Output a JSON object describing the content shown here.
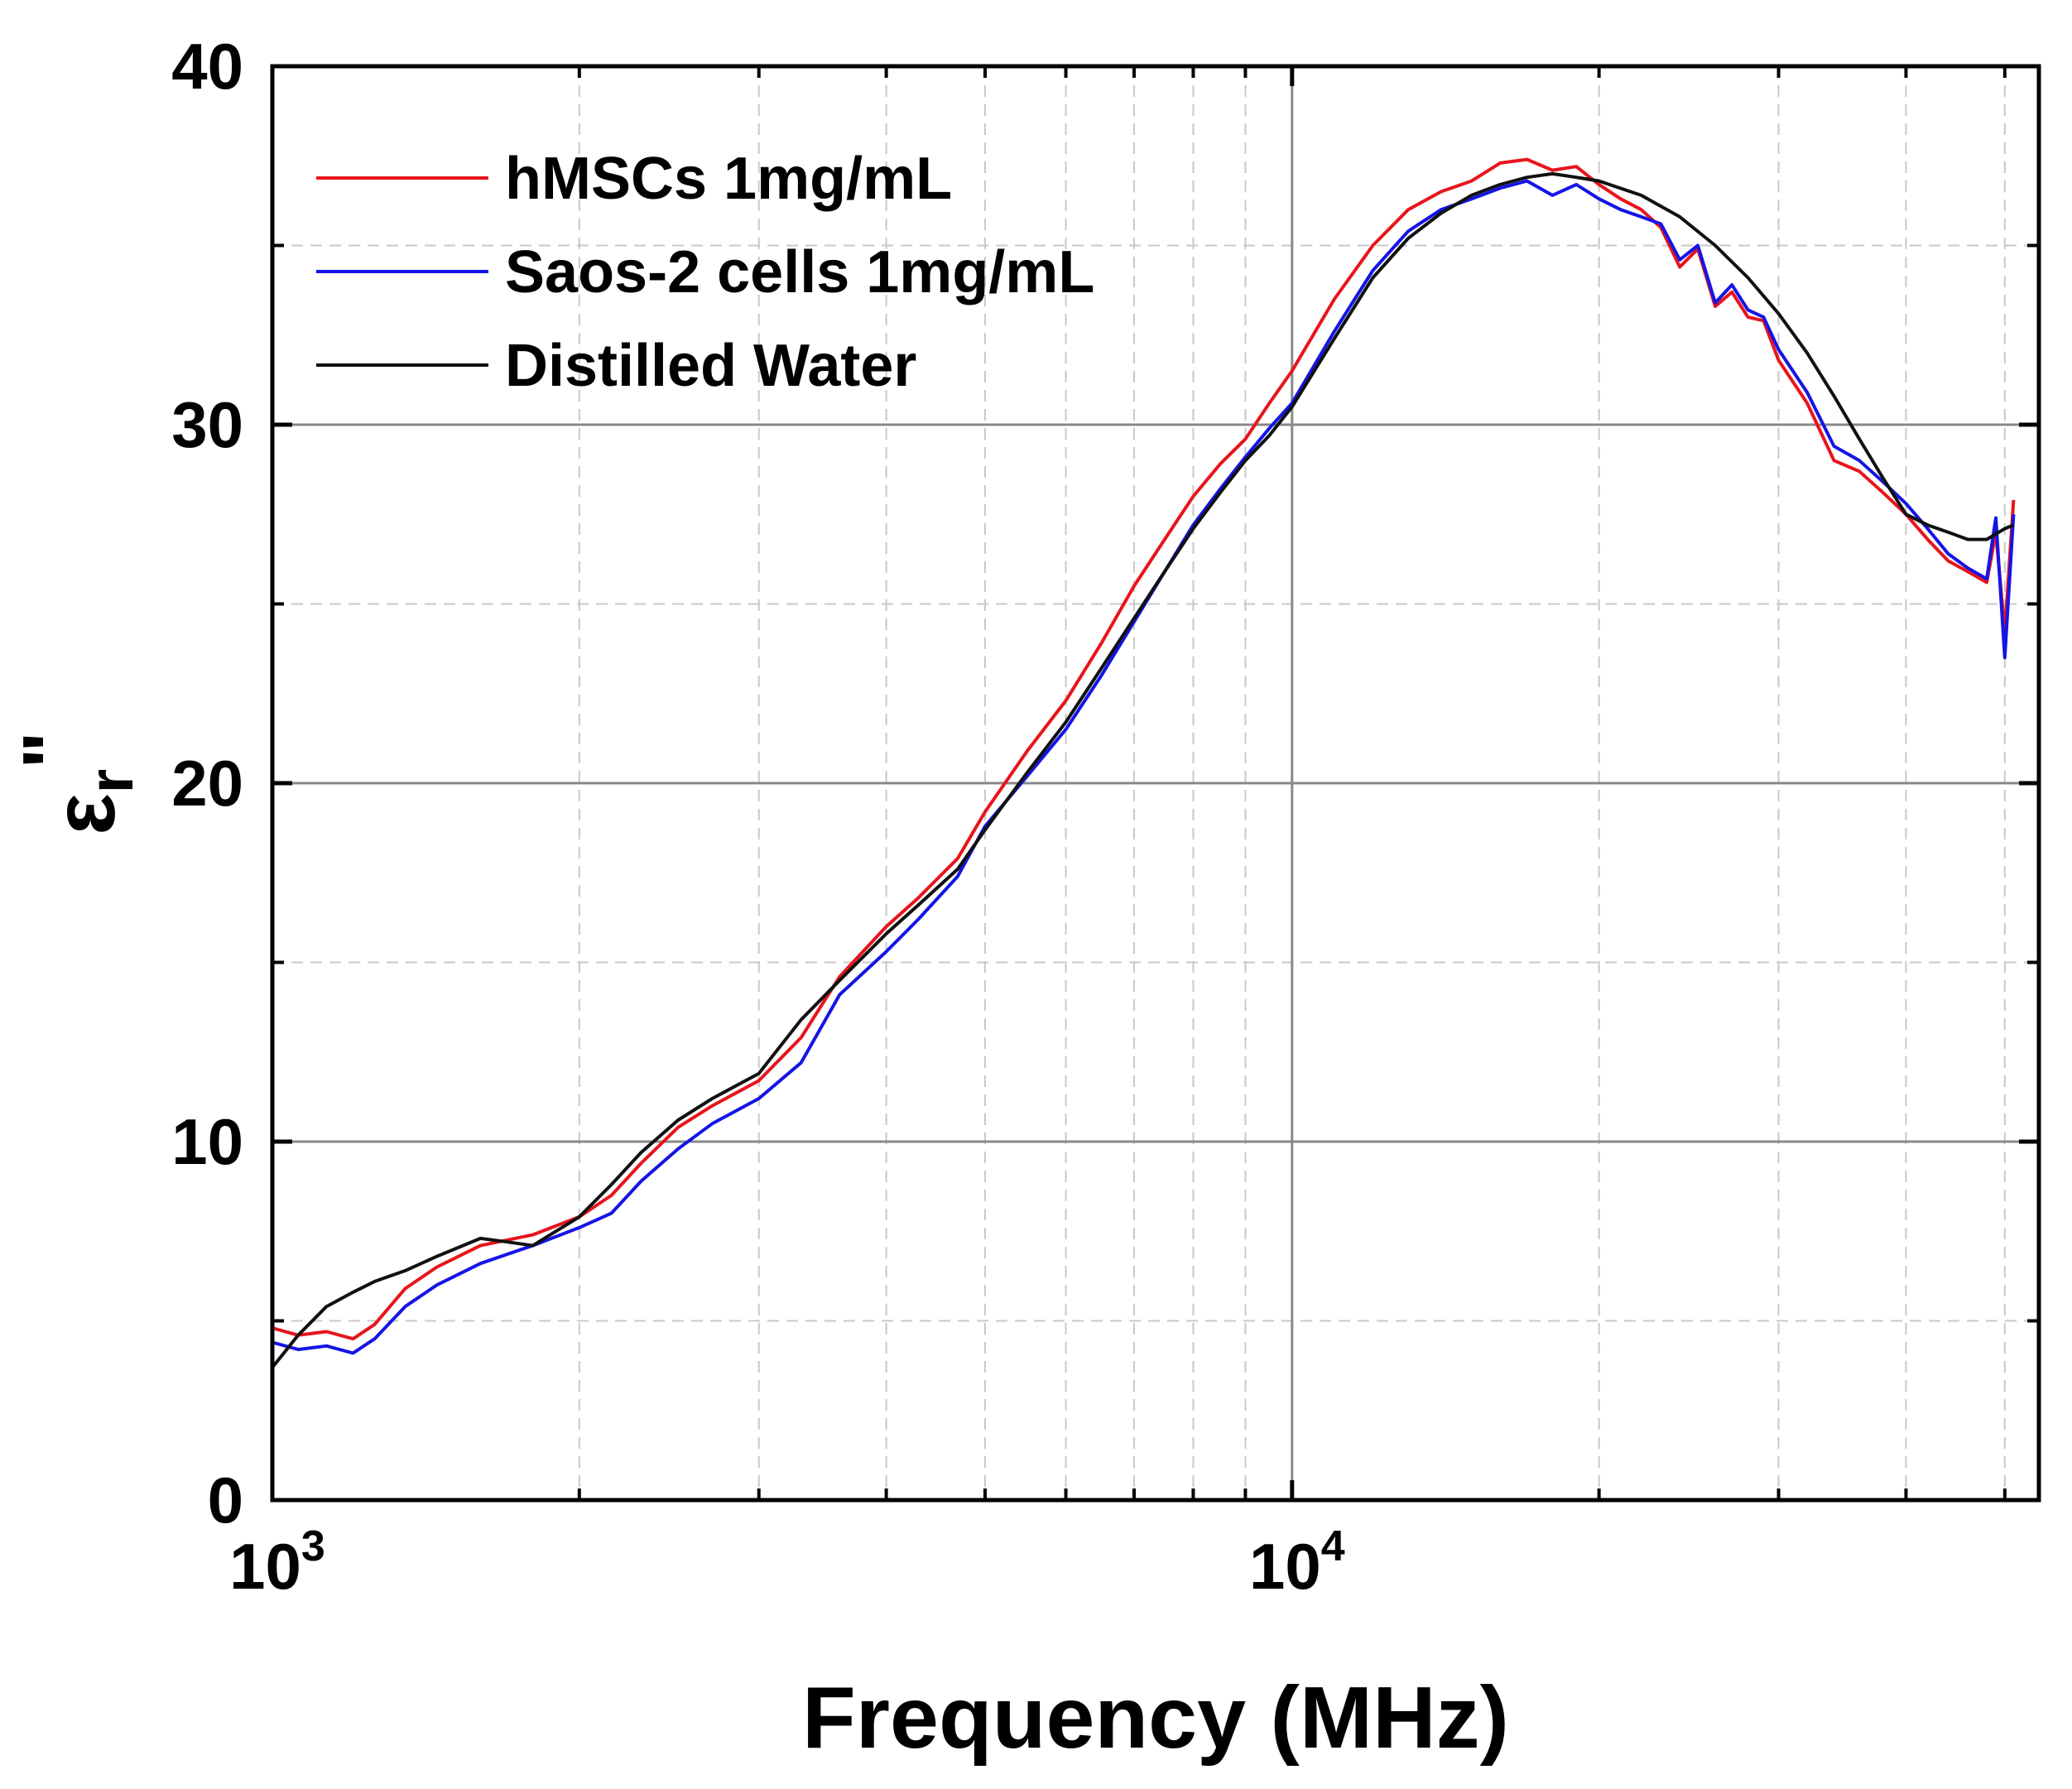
{
  "chart_data": {
    "type": "line",
    "title": "",
    "xlabel": "Frequency (MHz)",
    "ylabel": "εr\"",
    "ylabel_parts": {
      "symbol": "ε",
      "sub": "r",
      "sup": "\""
    },
    "xscale": "log",
    "xlim": [
      1000,
      54000
    ],
    "ylim": [
      0,
      40
    ],
    "x_major_ticks": [
      1000,
      10000
    ],
    "x_tick_labels": [
      {
        "base": "10",
        "exp": "3"
      },
      {
        "base": "10",
        "exp": "4"
      }
    ],
    "x_minor_ticks": [
      2000,
      3000,
      4000,
      5000,
      6000,
      7000,
      8000,
      9000,
      20000,
      30000,
      40000,
      50000
    ],
    "y_major_ticks": [
      0,
      10,
      20,
      30,
      40
    ],
    "y_tick_labels": [
      "0",
      "10",
      "20",
      "30",
      "40"
    ],
    "y_minor_ticks": [
      5,
      15,
      25,
      35
    ],
    "grid": true,
    "legend_position": "top-left",
    "series": [
      {
        "name": "hMSCs 1mg/mL",
        "color": "#e8141c",
        "x": [
          1000,
          1060,
          1130,
          1200,
          1260,
          1350,
          1450,
          1600,
          1800,
          2000,
          2150,
          2300,
          2500,
          2700,
          3000,
          3300,
          3600,
          4000,
          4300,
          4700,
          5000,
          5500,
          6000,
          6500,
          7000,
          7500,
          8000,
          8500,
          9000,
          9500,
          10000,
          11000,
          12000,
          13000,
          14000,
          15000,
          16000,
          17000,
          18000,
          19000,
          20000,
          21000,
          22000,
          23000,
          24000,
          25000,
          26000,
          27000,
          28000,
          29000,
          30000,
          32000,
          34000,
          36000,
          38000,
          40000,
          42000,
          44000,
          46000,
          48000,
          49000,
          50000,
          51000
        ],
        "values": [
          4.8,
          4.6,
          4.7,
          4.5,
          4.9,
          5.9,
          6.5,
          7.1,
          7.4,
          7.9,
          8.5,
          9.4,
          10.4,
          11.0,
          11.7,
          12.9,
          14.6,
          16.0,
          16.8,
          17.9,
          19.2,
          20.9,
          22.3,
          23.9,
          25.5,
          26.8,
          28.0,
          28.9,
          29.6,
          30.6,
          31.5,
          33.5,
          35.0,
          36.0,
          36.5,
          36.8,
          37.3,
          37.4,
          37.1,
          37.2,
          36.7,
          36.3,
          36.0,
          35.5,
          34.4,
          34.9,
          33.3,
          33.7,
          33.0,
          32.9,
          31.8,
          30.6,
          29.0,
          28.7,
          28.1,
          27.5,
          26.8,
          26.2,
          25.9,
          25.6,
          27.0,
          24.2,
          27.9
        ]
      },
      {
        "name": "Saos-2 cells 1mg/mL",
        "color": "#1414e6",
        "x": [
          1000,
          1060,
          1130,
          1200,
          1260,
          1350,
          1450,
          1600,
          1800,
          2000,
          2150,
          2300,
          2500,
          2700,
          3000,
          3300,
          3600,
          4000,
          4300,
          4700,
          5000,
          5500,
          6000,
          6500,
          7000,
          7500,
          8000,
          8500,
          9000,
          9500,
          10000,
          11000,
          12000,
          13000,
          14000,
          15000,
          16000,
          17000,
          18000,
          19000,
          20000,
          21000,
          22000,
          23000,
          24000,
          25000,
          26000,
          27000,
          28000,
          29000,
          30000,
          32000,
          34000,
          36000,
          38000,
          40000,
          42000,
          44000,
          46000,
          48000,
          49000,
          50000,
          51000
        ],
        "values": [
          4.4,
          4.2,
          4.3,
          4.1,
          4.5,
          5.4,
          6.0,
          6.6,
          7.1,
          7.6,
          8.0,
          8.9,
          9.8,
          10.5,
          11.2,
          12.2,
          14.1,
          15.3,
          16.2,
          17.4,
          18.8,
          20.2,
          21.5,
          23.0,
          24.5,
          25.9,
          27.2,
          28.2,
          29.1,
          29.9,
          30.6,
          32.6,
          34.3,
          35.4,
          36.0,
          36.3,
          36.6,
          36.8,
          36.4,
          36.7,
          36.3,
          36.0,
          35.8,
          35.6,
          34.6,
          35.0,
          33.4,
          33.9,
          33.2,
          33.0,
          32.1,
          30.9,
          29.4,
          29.0,
          28.4,
          27.8,
          27.1,
          26.4,
          26.0,
          25.7,
          27.4,
          23.5,
          27.5
        ]
      },
      {
        "name": "Distilled Water",
        "color": "#111111",
        "x": [
          1000,
          1060,
          1130,
          1200,
          1260,
          1350,
          1450,
          1600,
          1700,
          1800,
          2000,
          2150,
          2300,
          2500,
          2700,
          3000,
          3300,
          3600,
          4000,
          4300,
          4700,
          5000,
          5500,
          6000,
          6500,
          7000,
          7500,
          8000,
          8500,
          9000,
          9500,
          10000,
          11000,
          12000,
          13000,
          14000,
          15000,
          16000,
          17000,
          18000,
          19000,
          20000,
          22000,
          24000,
          26000,
          28000,
          30000,
          32000,
          34000,
          36000,
          38000,
          40000,
          42000,
          44000,
          46000,
          48000,
          50000,
          51000
        ],
        "values": [
          3.7,
          4.6,
          5.4,
          5.8,
          6.1,
          6.4,
          6.8,
          7.3,
          7.2,
          7.1,
          7.9,
          8.8,
          9.7,
          10.6,
          11.2,
          11.9,
          13.4,
          14.5,
          15.8,
          16.6,
          17.6,
          18.7,
          20.3,
          21.7,
          23.2,
          24.6,
          25.9,
          27.1,
          28.1,
          29.0,
          29.7,
          30.5,
          32.4,
          34.1,
          35.2,
          35.9,
          36.4,
          36.7,
          36.9,
          37.0,
          36.9,
          36.8,
          36.4,
          35.8,
          35.0,
          34.1,
          33.1,
          32.0,
          30.8,
          29.6,
          28.5,
          27.5,
          27.2,
          27.0,
          26.8,
          26.8,
          27.1,
          27.2
        ]
      }
    ]
  }
}
